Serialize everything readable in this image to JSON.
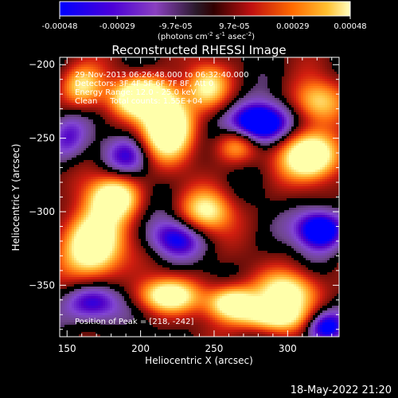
{
  "colorbar": {
    "ticks": [
      "-0.00048",
      "-0.00029",
      "-9.7e-05",
      "9.7e-05",
      "0.00029",
      "0.00048"
    ],
    "tick_values": [
      -0.00048,
      -0.00029,
      -9.7e-05,
      9.7e-05,
      0.00029,
      0.00048
    ],
    "unit_label": "(photons cm",
    "unit_sup1": "-2",
    "unit_mid": " s",
    "unit_sup2": "-1",
    "unit_mid2": " asec",
    "unit_sup3": "-2",
    "unit_end": ")",
    "range": [
      -0.00048,
      0.00048
    ]
  },
  "footer": {
    "timestamp": "18-May-2022 21:20"
  },
  "chart_data": {
    "type": "heatmap",
    "title": "Reconstructed RHESSI Image",
    "xlabel": "Heliocentric X (arcsec)",
    "ylabel": "Heliocentric Y (arcsec)",
    "xlim": [
      145,
      335
    ],
    "ylim": [
      -385,
      -195
    ],
    "xticks": [
      150,
      200,
      250,
      300
    ],
    "yticks": [
      -200,
      -250,
      -300,
      -350
    ],
    "xtick_labels": [
      "150",
      "200",
      "250",
      "300"
    ],
    "ytick_labels": [
      "−200",
      "−250",
      "−300",
      "−350"
    ],
    "annotations": {
      "time_range": "29-Nov-2013 06:26:48.000 to 06:32:40.000",
      "detectors": "Detectors: 3F 4F 5F 6F 7F 8F, Att 0",
      "energy": "Energy Range: 12.0 - 25.0 keV",
      "clean": "Clean     Total counts: 1.55E+04",
      "peak": "Position of Peak = [218, -242]"
    },
    "peak": [
      218,
      -242
    ],
    "bright_sources": [
      {
        "x": 218,
        "y": -242,
        "level": 1.0,
        "sx": 12,
        "sy": 15
      },
      {
        "x": 200,
        "y": -222,
        "level": 0.85,
        "sx": 14,
        "sy": 9
      },
      {
        "x": 316,
        "y": -262,
        "level": 0.95,
        "sx": 14,
        "sy": 11
      },
      {
        "x": 168,
        "y": -322,
        "level": 0.95,
        "sx": 14,
        "sy": 16
      },
      {
        "x": 182,
        "y": -290,
        "level": 0.75,
        "sx": 12,
        "sy": 10
      },
      {
        "x": 245,
        "y": -300,
        "level": 0.6,
        "sx": 12,
        "sy": 10
      },
      {
        "x": 218,
        "y": -357,
        "level": 0.75,
        "sx": 14,
        "sy": 8
      },
      {
        "x": 262,
        "y": -362,
        "level": 0.8,
        "sx": 12,
        "sy": 8
      },
      {
        "x": 300,
        "y": -355,
        "level": 0.7,
        "sx": 14,
        "sy": 10
      },
      {
        "x": 290,
        "y": -372,
        "level": 0.65,
        "sx": 16,
        "sy": 7
      },
      {
        "x": 245,
        "y": -215,
        "level": 0.55,
        "sx": 10,
        "sy": 10
      },
      {
        "x": 160,
        "y": -215,
        "level": 0.55,
        "sx": 10,
        "sy": 10
      },
      {
        "x": 320,
        "y": -225,
        "level": 0.5,
        "sx": 12,
        "sy": 10
      },
      {
        "x": 265,
        "y": -255,
        "level": 0.45,
        "sx": 10,
        "sy": 8
      }
    ],
    "dark_sources": [
      {
        "x": 280,
        "y": -240,
        "level": -0.8,
        "sx": 14,
        "sy": 10
      },
      {
        "x": 322,
        "y": -312,
        "level": -0.7,
        "sx": 12,
        "sy": 10
      },
      {
        "x": 222,
        "y": -318,
        "level": -0.45,
        "sx": 14,
        "sy": 10
      },
      {
        "x": 168,
        "y": -362,
        "level": -0.5,
        "sx": 14,
        "sy": 10
      },
      {
        "x": 325,
        "y": -378,
        "level": -0.55,
        "sx": 10,
        "sy": 8
      },
      {
        "x": 192,
        "y": -262,
        "level": -0.35,
        "sx": 12,
        "sy": 10
      },
      {
        "x": 150,
        "y": -250,
        "level": -0.35,
        "sx": 10,
        "sy": 12
      }
    ],
    "colormap": [
      "#0000ff",
      "#5a00c8",
      "#8a4ad8",
      "#7a4a8a",
      "#000000",
      "#8a1a10",
      "#d02010",
      "#ff7010",
      "#ffc040",
      "#ffff90"
    ]
  }
}
